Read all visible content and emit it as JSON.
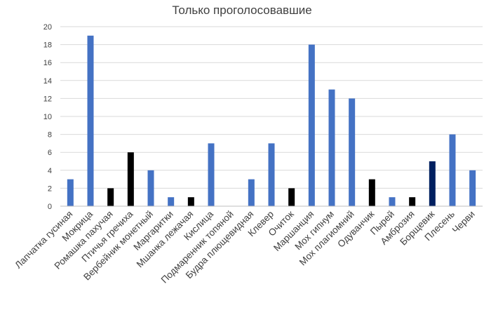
{
  "chart_data": {
    "type": "bar",
    "title": "Только проголосовавшие",
    "xlabel": "",
    "ylabel": "",
    "ylim": [
      0,
      20
    ],
    "yticks": [
      0,
      2,
      4,
      6,
      8,
      10,
      12,
      14,
      16,
      18,
      20
    ],
    "grid": true,
    "categories": [
      "Лапчатка гусиная",
      "Мокрица",
      "Ромашка пахучая",
      "Птичья гречиха",
      "Вербейник монетный",
      "Маргаритки",
      "Мшанка лежачая",
      "Кислица",
      "Подмаренник топяной",
      "Будра плющевидная",
      "Клевер",
      "Очиток",
      "Маршанция",
      "Мох гипнум",
      "Мох плагиомний",
      "Одуванчик",
      "Пырей",
      "Амброзия",
      "Борщевик",
      "Плесень",
      "Черви"
    ],
    "values": [
      3,
      19,
      2,
      6,
      4,
      1,
      1,
      7,
      0,
      3,
      7,
      2,
      18,
      13,
      12,
      3,
      1,
      1,
      5,
      8,
      4
    ],
    "bar_colors": [
      "#4472c4",
      "#4472c4",
      "#000000",
      "#000000",
      "#4472c4",
      "#4472c4",
      "#000000",
      "#4472c4",
      "#4472c4",
      "#4472c4",
      "#4472c4",
      "#000000",
      "#4472c4",
      "#4472c4",
      "#4472c4",
      "#000000",
      "#4472c4",
      "#000000",
      "#002060",
      "#4472c4",
      "#4472c4"
    ]
  }
}
